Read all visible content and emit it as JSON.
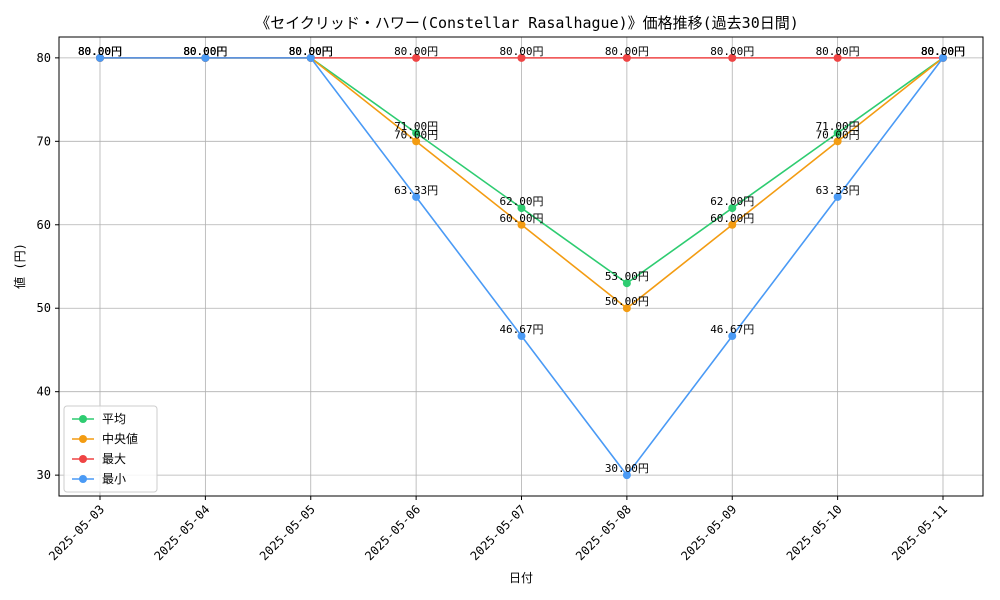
{
  "chart_data": {
    "type": "line",
    "title": "《セイクリッド・ハワー(Constellar Rasalhague)》価格推移(過去30日間)",
    "xlabel": "日付",
    "ylabel": "値 (円)",
    "categories": [
      "2025-05-03",
      "2025-05-04",
      "2025-05-05",
      "2025-05-06",
      "2025-05-07",
      "2025-05-08",
      "2025-05-09",
      "2025-05-10",
      "2025-05-11"
    ],
    "ylim": [
      27.5,
      82.5
    ],
    "yticks": [
      30,
      40,
      50,
      60,
      70,
      80
    ],
    "grid": true,
    "legend_position": "bottom-left",
    "label_suffix": "円",
    "series": [
      {
        "name": "平均",
        "color": "#2ecc71",
        "values": [
          80,
          80,
          80,
          71,
          62,
          53,
          62,
          71,
          80
        ]
      },
      {
        "name": "中央値",
        "color": "#f39c12",
        "values": [
          80,
          80,
          80,
          70,
          60,
          50,
          60,
          70,
          80
        ]
      },
      {
        "name": "最大",
        "color": "#ef4444",
        "values": [
          80,
          80,
          80,
          80,
          80,
          80,
          80,
          80,
          80
        ]
      },
      {
        "name": "最小",
        "color": "#4a9af5",
        "values": [
          80,
          80,
          80,
          63.33,
          46.67,
          30,
          46.67,
          63.33,
          80
        ]
      }
    ]
  }
}
